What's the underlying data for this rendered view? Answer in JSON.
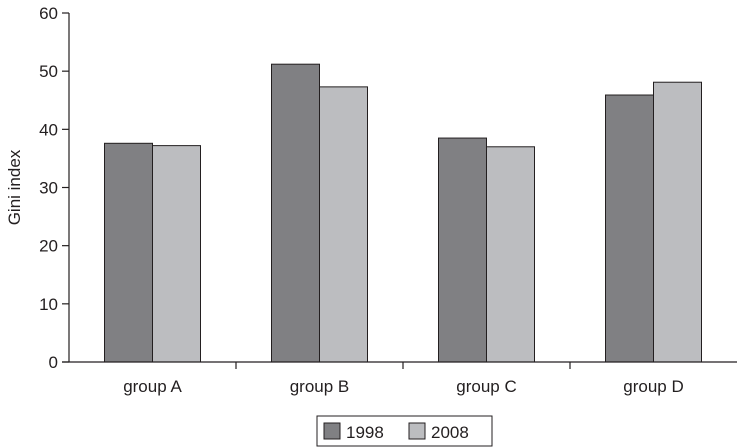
{
  "chart_data": {
    "type": "bar",
    "title": "",
    "xlabel": "",
    "ylabel": "Gini index",
    "ylim": [
      0,
      60
    ],
    "yticks": [
      0,
      10,
      20,
      30,
      40,
      50,
      60
    ],
    "grid": false,
    "legend_position": "bottom-center",
    "categories": [
      "group A",
      "group B",
      "group C",
      "group D"
    ],
    "series": [
      {
        "name": "1998",
        "color": "#808083",
        "values": [
          37.6,
          51.2,
          38.5,
          45.9
        ]
      },
      {
        "name": "2008",
        "color": "#bcbdc0",
        "values": [
          37.2,
          47.3,
          37.0,
          48.1
        ]
      }
    ]
  }
}
